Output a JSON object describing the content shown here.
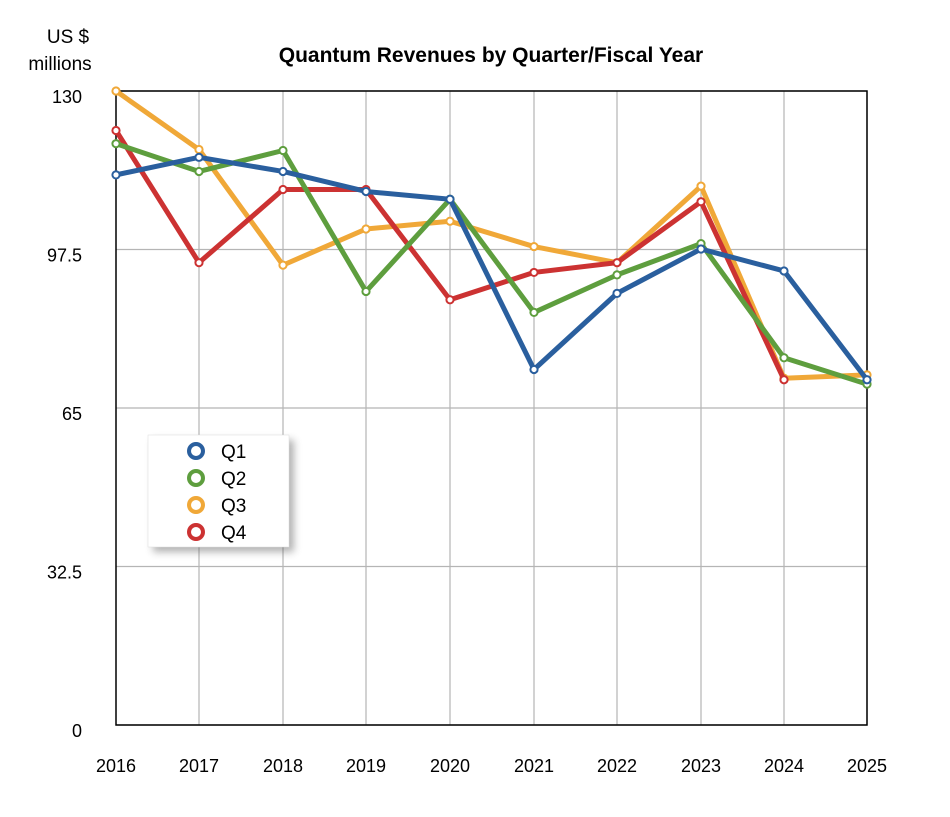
{
  "chart_data": {
    "type": "line",
    "title": "Quantum Revenues by Quarter/Fiscal Year",
    "ylabel": [
      "US $",
      "millions"
    ],
    "xlabel": "",
    "categories": [
      "2016",
      "2017",
      "2018",
      "2019",
      "2020",
      "2021",
      "2022",
      "2023",
      "2024",
      "2025"
    ],
    "yticks": [
      "130",
      "97.5",
      "65",
      "32.5",
      "0"
    ],
    "ylim": [
      0,
      130
    ],
    "grid": true,
    "legend_position": "middle-left",
    "series": [
      {
        "name": "Q1",
        "color": "#2a5f9e",
        "values": [
          112.8,
          116.4,
          113.5,
          109.4,
          107.8,
          72.9,
          88.5,
          97.6,
          93.1,
          70.8
        ]
      },
      {
        "name": "Q2",
        "color": "#5e9e3e",
        "values": [
          119.2,
          113.5,
          117.8,
          88.9,
          107.8,
          84.6,
          92.3,
          98.7,
          null,
          69.9
        ]
      },
      {
        "name": "Q3",
        "color": "#f0a838",
        "values": [
          130.0,
          118.0,
          94.3,
          101.7,
          103.3,
          98.1,
          94.8,
          110.5,
          null,
          71.8
        ]
      },
      {
        "name": "Q4",
        "color": "#cc3232",
        "values": [
          121.9,
          94.8,
          109.8,
          109.8,
          87.2,
          92.8,
          null,
          107.3,
          70.8,
          null
        ]
      }
    ],
    "tail_values": {
      "Q2": [
        null,
        null,
        null,
        null,
        null,
        null,
        null,
        null,
        75.3,
        null
      ],
      "Q3": [
        null,
        null,
        null,
        null,
        null,
        null,
        null,
        null,
        71.1,
        null
      ],
      "Q4": [
        null,
        null,
        null,
        null,
        null,
        null,
        94.8,
        null,
        null,
        null
      ]
    }
  }
}
